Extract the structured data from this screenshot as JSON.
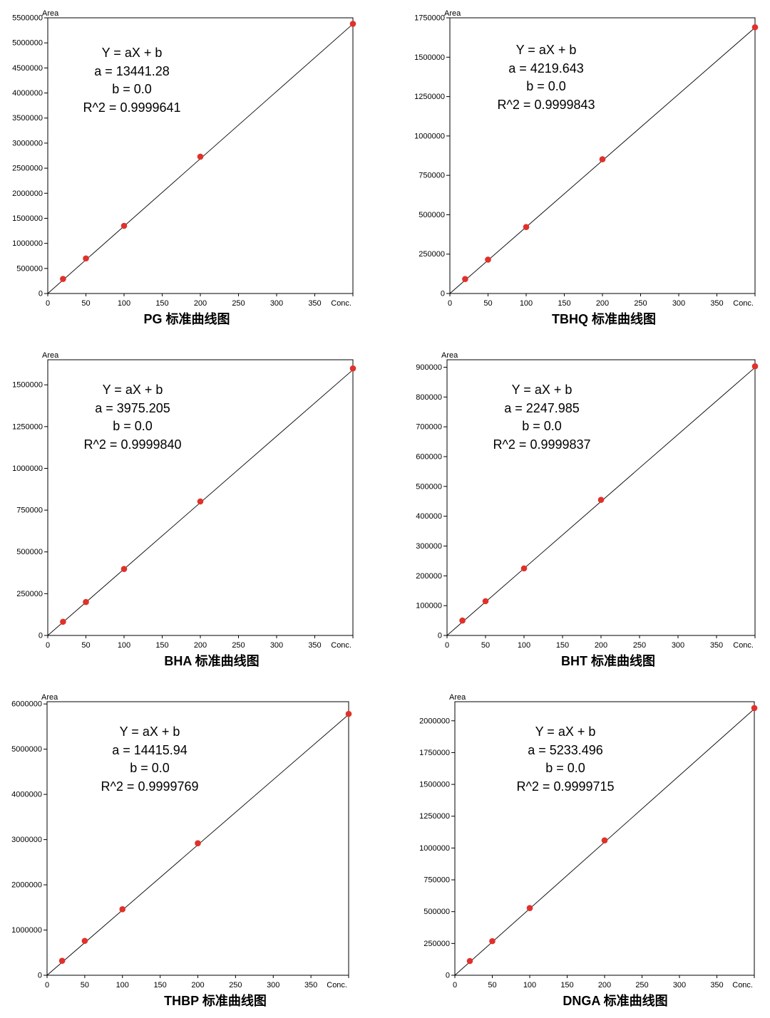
{
  "chart_data": [
    {
      "type": "scatter",
      "title": "PG 标准曲线图",
      "ylabel": "Area",
      "xlabel": "Conc.",
      "xlim": [
        0,
        400
      ],
      "ylim": [
        0,
        5500000
      ],
      "xticks": [
        "0",
        "50",
        "100",
        "150",
        "200",
        "250",
        "300",
        "350"
      ],
      "yticks": [
        "0",
        "500000",
        "1000000",
        "1500000",
        "2000000",
        "2500000",
        "3000000",
        "3500000",
        "4000000",
        "4500000",
        "5000000",
        "5500000"
      ],
      "x": [
        20,
        50,
        100,
        200,
        400
      ],
      "y": [
        290000,
        700000,
        1350000,
        2730000,
        5380000
      ],
      "fit_line": {
        "a": 13441.28,
        "b": 0.0
      },
      "equation_lines": [
        "Y = aX + b",
        "a = 13441.28",
        "b = 0.0",
        "R^2 = 0.9999641"
      ],
      "colors": {
        "points": "#e0312a",
        "line": "#000000"
      }
    },
    {
      "type": "scatter",
      "title": "TBHQ 标准曲线图",
      "ylabel": "Area",
      "xlabel": "Conc.",
      "xlim": [
        0,
        400
      ],
      "ylim": [
        0,
        1750000
      ],
      "xticks": [
        "0",
        "50",
        "100",
        "150",
        "200",
        "250",
        "300",
        "350"
      ],
      "yticks": [
        "0",
        "250000",
        "500000",
        "750000",
        "1000000",
        "1250000",
        "1500000",
        "1750000"
      ],
      "x": [
        20,
        50,
        100,
        200,
        400
      ],
      "y": [
        92000,
        215000,
        422000,
        852000,
        1690000
      ],
      "fit_line": {
        "a": 4219.643,
        "b": 0.0
      },
      "equation_lines": [
        "Y = aX + b",
        "a = 4219.643",
        "b = 0.0",
        "R^2 = 0.9999843"
      ],
      "colors": {
        "points": "#e0312a",
        "line": "#000000"
      }
    },
    {
      "type": "scatter",
      "title": "BHA 标准曲线图",
      "ylabel": "Area",
      "xlabel": "Conc.",
      "xlim": [
        0,
        400
      ],
      "ylim": [
        0,
        1650000
      ],
      "xticks": [
        "0",
        "50",
        "100",
        "150",
        "200",
        "250",
        "300",
        "350"
      ],
      "yticks": [
        "0",
        "250000",
        "500000",
        "750000",
        "1000000",
        "1250000",
        "1500000"
      ],
      "x": [
        20,
        50,
        100,
        200,
        400
      ],
      "y": [
        82000,
        200000,
        398000,
        802000,
        1598000
      ],
      "fit_line": {
        "a": 3975.205,
        "b": 0.0
      },
      "equation_lines": [
        "Y = aX + b",
        "a = 3975.205",
        "b = 0.0",
        "R^2 = 0.9999840"
      ],
      "colors": {
        "points": "#e0312a",
        "line": "#000000"
      }
    },
    {
      "type": "scatter",
      "title": "BHT 标准曲线图",
      "ylabel": "Area",
      "xlabel": "Conc.",
      "xlim": [
        0,
        400
      ],
      "ylim": [
        0,
        925000
      ],
      "xticks": [
        "0",
        "50",
        "100",
        "150",
        "200",
        "250",
        "300",
        "350"
      ],
      "yticks": [
        "0",
        "100000",
        "200000",
        "300000",
        "400000",
        "500000",
        "600000",
        "700000",
        "800000",
        "900000"
      ],
      "x": [
        20,
        50,
        100,
        200,
        400
      ],
      "y": [
        50000,
        115000,
        225000,
        455000,
        903000
      ],
      "fit_line": {
        "a": 2247.985,
        "b": 0.0
      },
      "equation_lines": [
        "Y = aX + b",
        "a = 2247.985",
        "b = 0.0",
        "R^2 = 0.9999837"
      ],
      "colors": {
        "points": "#e0312a",
        "line": "#000000"
      }
    },
    {
      "type": "scatter",
      "title": "THBP 标准曲线图",
      "ylabel": "Area",
      "xlabel": "Conc.",
      "xlim": [
        0,
        400
      ],
      "ylim": [
        0,
        6050000
      ],
      "xticks": [
        "0",
        "50",
        "100",
        "150",
        "200",
        "250",
        "300",
        "350"
      ],
      "yticks": [
        "0",
        "1000000",
        "2000000",
        "3000000",
        "4000000",
        "5000000",
        "6000000"
      ],
      "x": [
        20,
        50,
        100,
        200,
        400
      ],
      "y": [
        320000,
        760000,
        1460000,
        2920000,
        5780000
      ],
      "fit_line": {
        "a": 14415.94,
        "b": 0.0
      },
      "equation_lines": [
        "Y = aX + b",
        "a = 14415.94",
        "b = 0.0",
        "R^2 = 0.9999769"
      ],
      "colors": {
        "points": "#e0312a",
        "line": "#000000"
      }
    },
    {
      "type": "scatter",
      "title": "DNGA 标准曲线图",
      "ylabel": "Area",
      "xlabel": "Conc.",
      "xlim": [
        0,
        400
      ],
      "ylim": [
        0,
        2150000
      ],
      "xticks": [
        "0",
        "50",
        "100",
        "150",
        "200",
        "250",
        "300",
        "350"
      ],
      "yticks": [
        "0",
        "250000",
        "500000",
        "750000",
        "1000000",
        "1250000",
        "1500000",
        "1750000",
        "2000000"
      ],
      "x": [
        20,
        50,
        100,
        200,
        400
      ],
      "y": [
        112000,
        268000,
        528000,
        1060000,
        2100000
      ],
      "fit_line": {
        "a": 5233.496,
        "b": 0.0
      },
      "equation_lines": [
        "Y = aX + b",
        "a = 5233.496",
        "b = 0.0",
        "R^2 = 0.9999715"
      ],
      "colors": {
        "points": "#e0312a",
        "line": "#000000"
      }
    }
  ]
}
